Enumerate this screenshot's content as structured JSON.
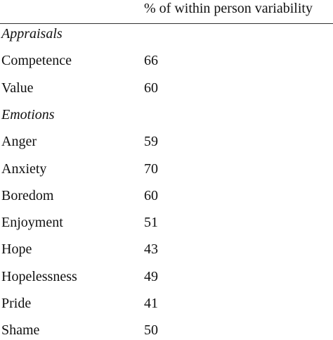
{
  "table": {
    "header": {
      "column": "% of within person variability"
    },
    "sections": [
      {
        "title": "Appraisals",
        "rows": [
          {
            "label": "Competence",
            "value": 66
          },
          {
            "label": "Value",
            "value": 60
          }
        ]
      },
      {
        "title": "Emotions",
        "rows": [
          {
            "label": "Anger",
            "value": 59
          },
          {
            "label": "Anxiety",
            "value": 70
          },
          {
            "label": "Boredom",
            "value": 60
          },
          {
            "label": "Enjoyment",
            "value": 51
          },
          {
            "label": "Hope",
            "value": 43
          },
          {
            "label": "Hopelessness",
            "value": 49
          },
          {
            "label": "Pride",
            "value": 41
          },
          {
            "label": "Shame",
            "value": 50
          }
        ]
      }
    ]
  }
}
